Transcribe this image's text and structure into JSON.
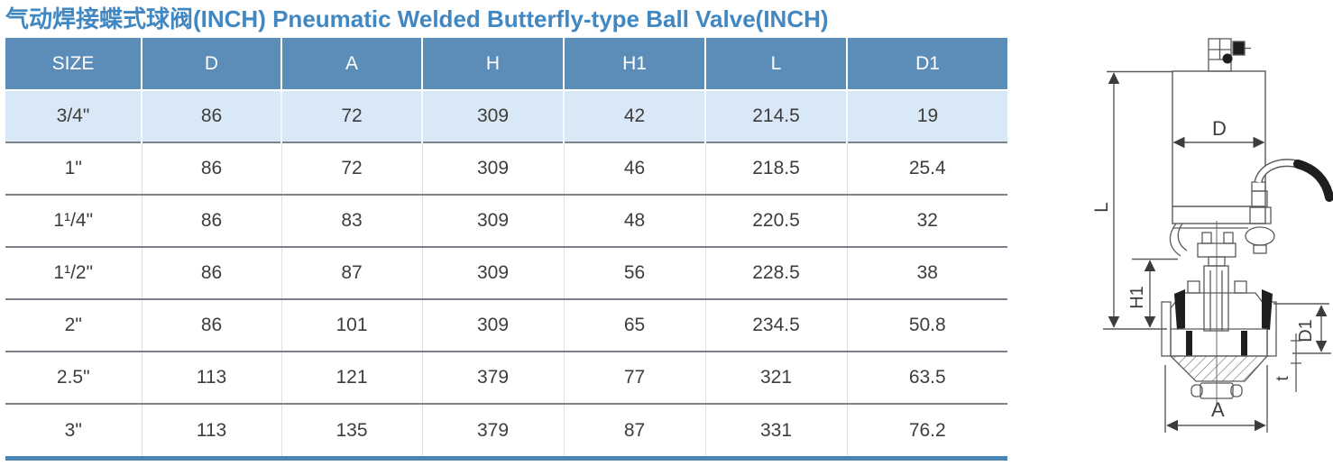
{
  "title": "气动焊接蝶式球阀(INCH) Pneumatic Welded Butterfly-type Ball Valve(INCH)",
  "colors": {
    "title": "#4187c2",
    "header_bg": "#5b8db8",
    "header_text": "#ffffff",
    "highlight_row_bg": "#d9e8f7",
    "separator": "#7d828a",
    "bottom_bar": "#4a86b5"
  },
  "table": {
    "columns": [
      "SIZE",
      "D",
      "A",
      "H",
      "H1",
      "L",
      "D1"
    ],
    "rows": [
      [
        "3/4\"",
        "86",
        "72",
        "309",
        "42",
        "214.5",
        "19"
      ],
      [
        "1\"",
        "86",
        "72",
        "309",
        "46",
        "218.5",
        "25.4"
      ],
      [
        "1¹/4\"",
        "86",
        "83",
        "309",
        "48",
        "220.5",
        "32"
      ],
      [
        "1¹/2\"",
        "86",
        "87",
        "309",
        "56",
        "228.5",
        "38"
      ],
      [
        "2\"",
        "86",
        "101",
        "309",
        "65",
        "234.5",
        "50.8"
      ],
      [
        "2.5\"",
        "113",
        "121",
        "379",
        "77",
        "321",
        "63.5"
      ],
      [
        "3\"",
        "113",
        "135",
        "379",
        "87",
        "331",
        "76.2"
      ]
    ],
    "highlight_row_index": 0
  },
  "diagram": {
    "labels": {
      "d": "D",
      "l": "L",
      "h1": "H1",
      "d1": "D1",
      "t": "t",
      "a": "A"
    }
  }
}
